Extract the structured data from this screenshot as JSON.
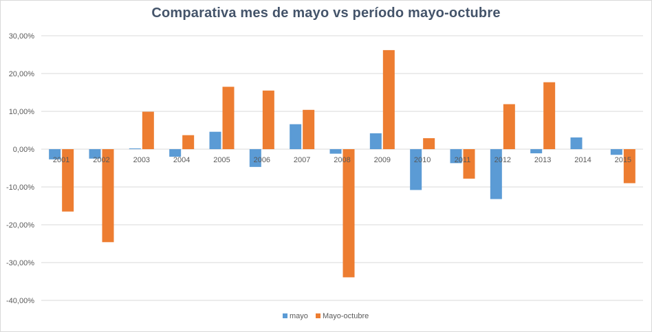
{
  "chart_data": {
    "type": "bar",
    "title": "Comparativa  mes de mayo vs período mayo-octubre",
    "xlabel": "",
    "ylabel": "",
    "ylim": [
      -0.4,
      0.3
    ],
    "yticks": [
      0.3,
      0.2,
      0.1,
      0.0,
      -0.1,
      -0.2,
      -0.3,
      -0.4
    ],
    "ytick_labels": [
      "30,00%",
      "20,00%",
      "10,00%",
      "0,00%",
      "-10,00%",
      "-20,00%",
      "-30,00%",
      "-40,00%"
    ],
    "categories": [
      "2001",
      "2002",
      "2003",
      "2004",
      "2005",
      "2006",
      "2007",
      "2008",
      "2009",
      "2010",
      "2011",
      "2012",
      "2013",
      "2014",
      "2015"
    ],
    "series": [
      {
        "name": "mayo",
        "color": "#5b9bd5",
        "values": [
          -0.027,
          -0.025,
          0.002,
          -0.02,
          0.046,
          -0.047,
          0.066,
          -0.012,
          0.042,
          -0.108,
          -0.037,
          -0.132,
          -0.011,
          0.031,
          -0.015
        ]
      },
      {
        "name": "Mayo-octubre",
        "color": "#ed7d31",
        "values": [
          -0.165,
          -0.246,
          0.099,
          0.037,
          0.165,
          0.155,
          0.104,
          -0.339,
          0.262,
          0.029,
          -0.078,
          0.119,
          0.177,
          0.0,
          -0.09
        ]
      }
    ],
    "grid": true,
    "legend_position": "bottom"
  }
}
